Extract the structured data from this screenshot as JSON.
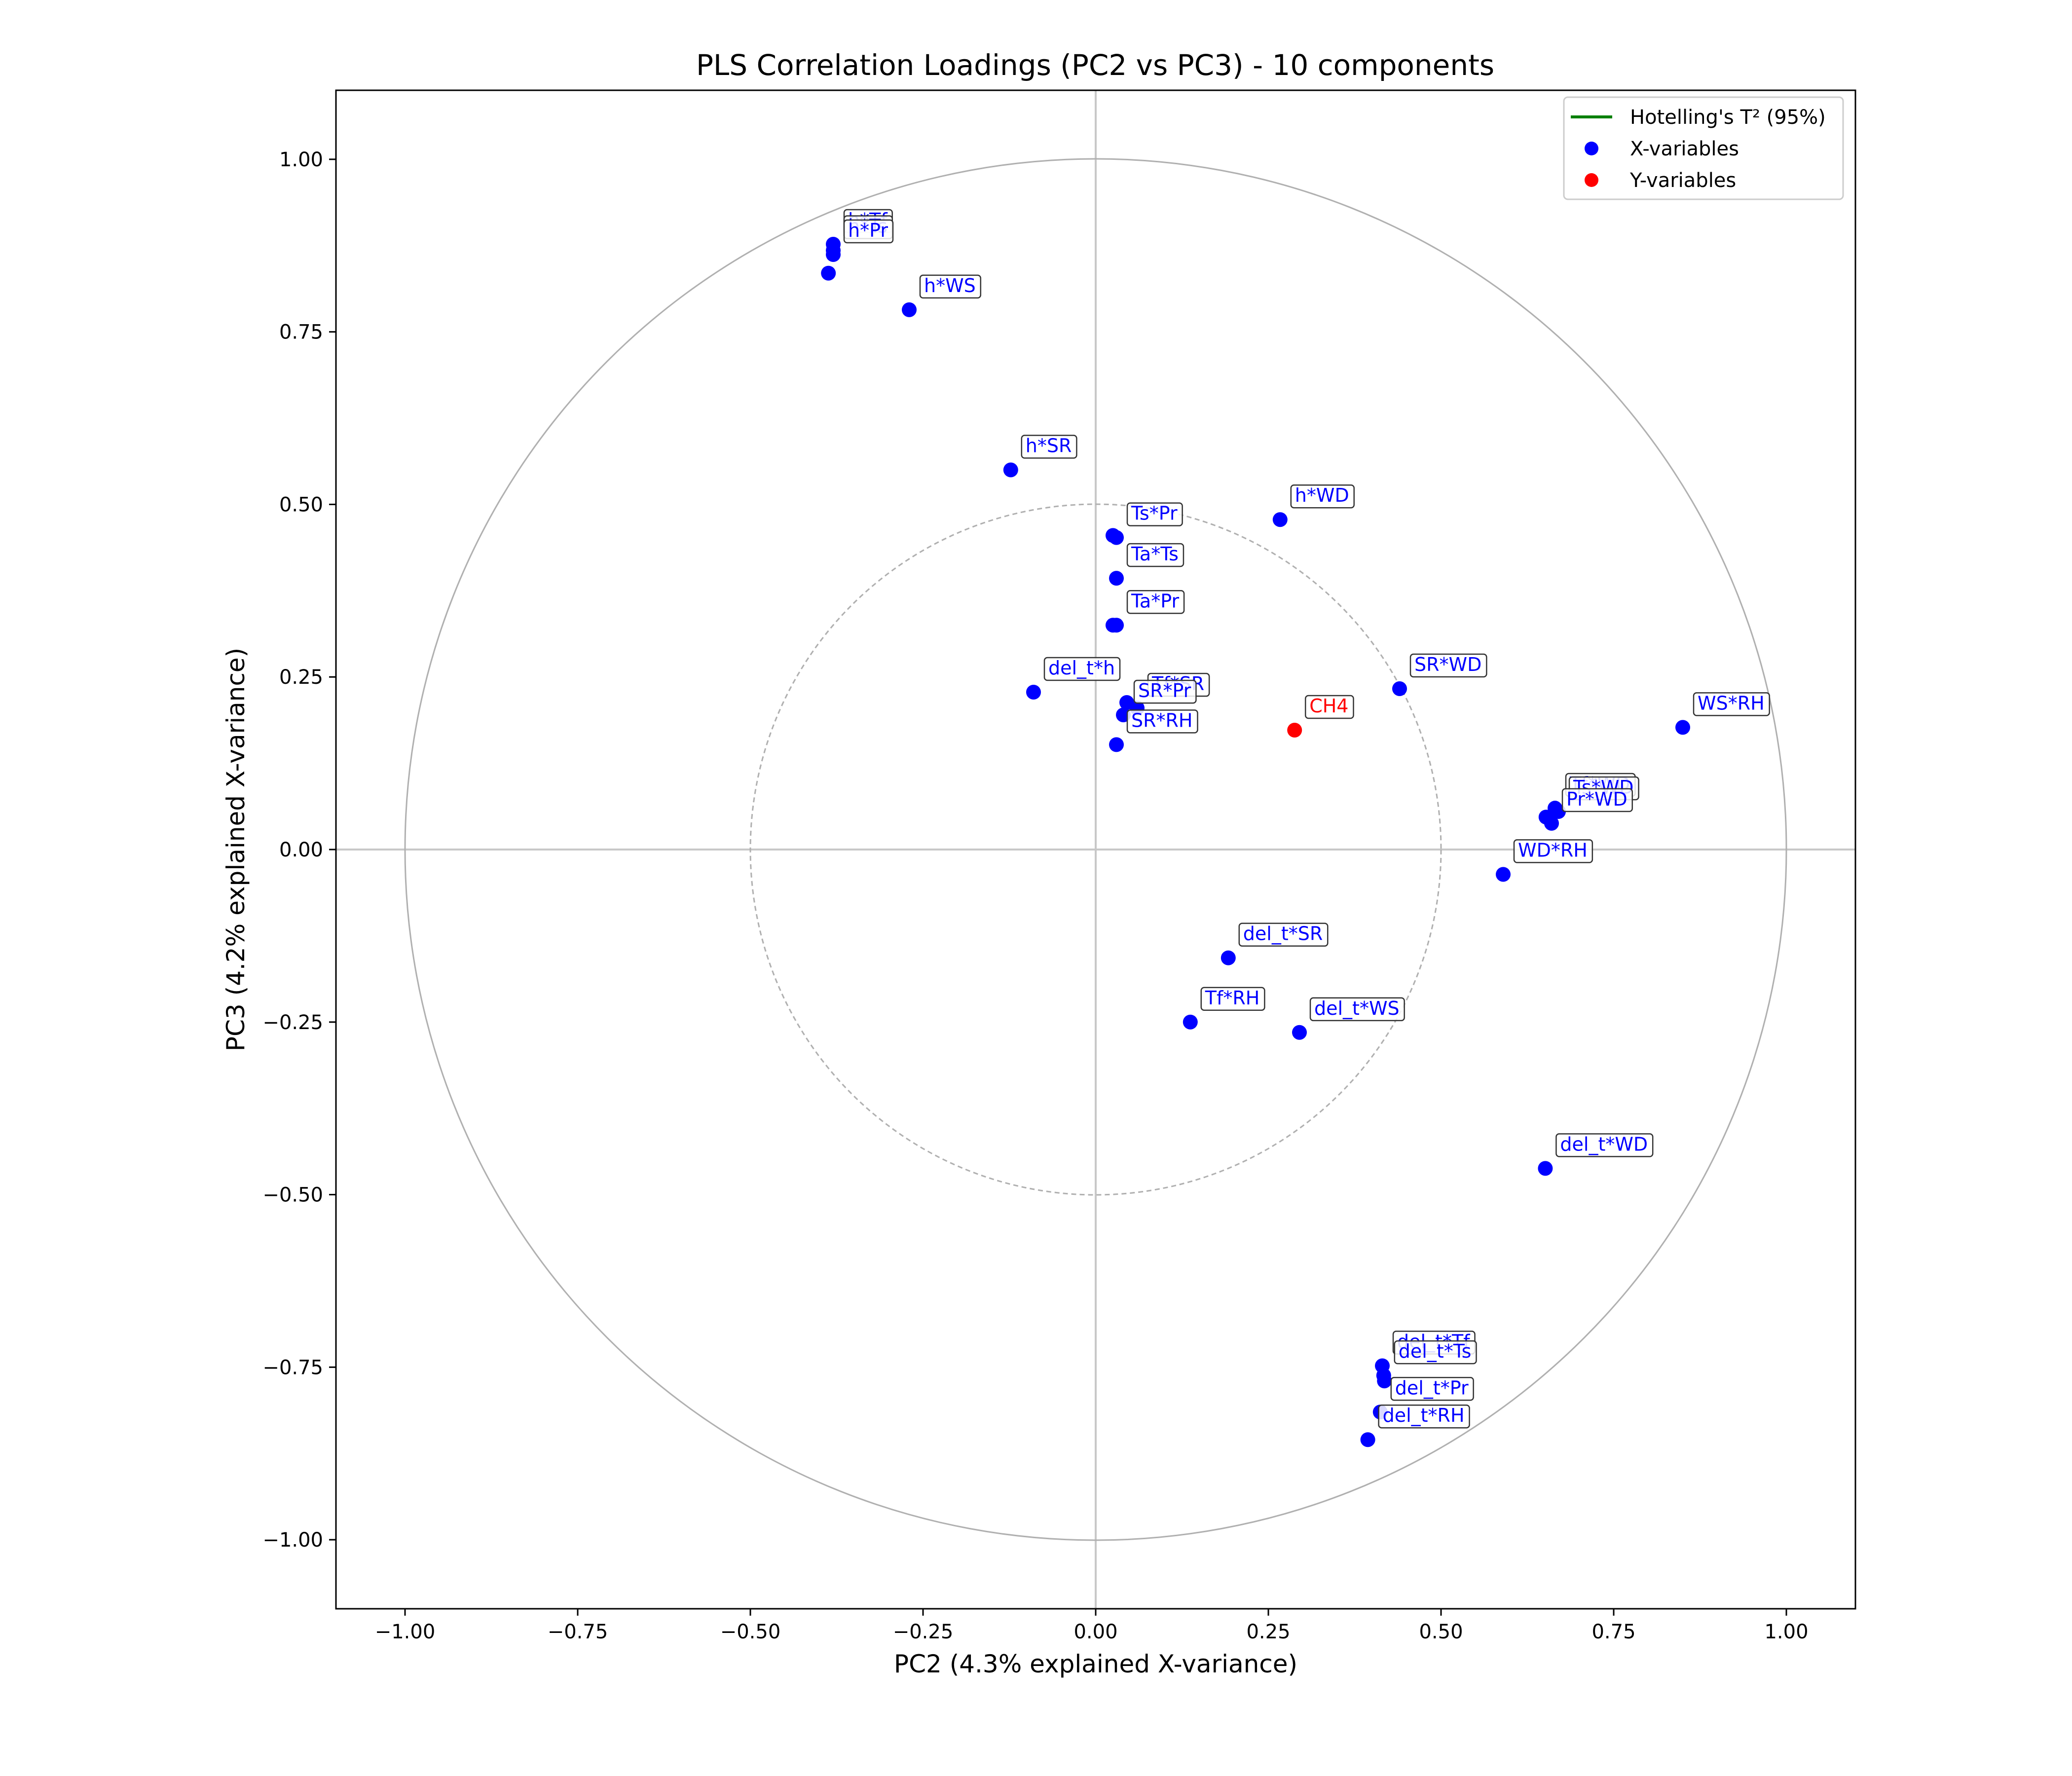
{
  "chart_data": {
    "type": "scatter",
    "title": "PLS Correlation Loadings (PC2 vs PC3) - 10 components",
    "xlabel": "PC2 (4.3% explained X-variance)",
    "ylabel": "PC3 (4.2% explained X-variance)",
    "xlim": [
      -1.1,
      1.1
    ],
    "ylim": [
      -1.1,
      1.1
    ],
    "xticks": [
      -1.0,
      -0.75,
      -0.5,
      -0.25,
      0.0,
      0.25,
      0.5,
      0.75,
      1.0
    ],
    "yticks": [
      -1.0,
      -0.75,
      -0.5,
      -0.25,
      0.0,
      0.25,
      0.5,
      0.75,
      1.0
    ],
    "xtick_labels": [
      "−1.00",
      "−0.75",
      "−0.50",
      "−0.25",
      "0.00",
      "0.25",
      "0.50",
      "0.75",
      "1.00"
    ],
    "ytick_labels": [
      "−1.00",
      "−0.75",
      "−0.50",
      "−0.25",
      "0.00",
      "0.25",
      "0.50",
      "0.75",
      "1.00"
    ],
    "circles": [
      {
        "radius": 1.0,
        "style": "solid",
        "color": "#b0b0b0"
      },
      {
        "radius": 0.5,
        "style": "dashed",
        "color": "#b0b0b0"
      }
    ],
    "legend": {
      "placement": "top-right",
      "entries": [
        {
          "label": "Hotelling's T² (95%)",
          "marker": "line",
          "color": "#008000"
        },
        {
          "label": "X-variables",
          "marker": "dot",
          "color": "#0000ff"
        },
        {
          "label": "Y-variables",
          "marker": "dot",
          "color": "#ff0000"
        }
      ]
    },
    "series": [
      {
        "name": "X-variables",
        "color": "#0000ff",
        "points": [
          {
            "label": "h*Tf",
            "x": -0.38,
            "y": 0.877
          },
          {
            "label": "h*Ts",
            "x": -0.38,
            "y": 0.868
          },
          {
            "label": "h*Pr",
            "x": -0.38,
            "y": 0.862
          },
          {
            "label": "",
            "x": -0.387,
            "y": 0.835
          },
          {
            "label": "h*WS",
            "x": -0.27,
            "y": 0.782
          },
          {
            "label": "h*SR",
            "x": -0.123,
            "y": 0.55
          },
          {
            "label": "h*WD",
            "x": 0.267,
            "y": 0.478
          },
          {
            "label": "",
            "x": 0.025,
            "y": 0.455
          },
          {
            "label": "Ts*Pr",
            "x": 0.03,
            "y": 0.452
          },
          {
            "label": "Ta*Ts",
            "x": 0.03,
            "y": 0.393
          },
          {
            "label": "",
            "x": 0.025,
            "y": 0.325
          },
          {
            "label": "Ta*Pr",
            "x": 0.03,
            "y": 0.325
          },
          {
            "label": "del_t*h",
            "x": -0.09,
            "y": 0.228
          },
          {
            "label": "",
            "x": 0.045,
            "y": 0.213
          },
          {
            "label": "Tf*SR",
            "x": 0.06,
            "y": 0.205
          },
          {
            "label": "SR*Pr",
            "x": 0.04,
            "y": 0.195
          },
          {
            "label": "SR*RH",
            "x": 0.03,
            "y": 0.152
          },
          {
            "label": "SR*WD",
            "x": 0.44,
            "y": 0.233
          },
          {
            "label": "WS*RH",
            "x": 0.85,
            "y": 0.177
          },
          {
            "label": "Tf*WD",
            "x": 0.665,
            "y": 0.06
          },
          {
            "label": "Ts*WD",
            "x": 0.67,
            "y": 0.055
          },
          {
            "label": "",
            "x": 0.652,
            "y": 0.047
          },
          {
            "label": "Pr*WD",
            "x": 0.66,
            "y": 0.038
          },
          {
            "label": "WD*RH",
            "x": 0.59,
            "y": -0.036
          },
          {
            "label": "del_t*SR",
            "x": 0.192,
            "y": -0.157
          },
          {
            "label": "Tf*RH",
            "x": 0.137,
            "y": -0.25
          },
          {
            "label": "del_t*WS",
            "x": 0.295,
            "y": -0.265
          },
          {
            "label": "del_t*WD",
            "x": 0.651,
            "y": -0.462
          },
          {
            "label": "del_t*Tf",
            "x": 0.415,
            "y": -0.748
          },
          {
            "label": "del_t*Ts",
            "x": 0.417,
            "y": -0.762
          },
          {
            "label": "",
            "x": 0.418,
            "y": -0.77
          },
          {
            "label": "del_t*Pr",
            "x": 0.412,
            "y": -0.815
          },
          {
            "label": "del_t*RH",
            "x": 0.394,
            "y": -0.855
          }
        ]
      },
      {
        "name": "Y-variables",
        "color": "#ff0000",
        "points": [
          {
            "label": "CH4",
            "x": 0.288,
            "y": 0.173
          }
        ]
      }
    ]
  }
}
